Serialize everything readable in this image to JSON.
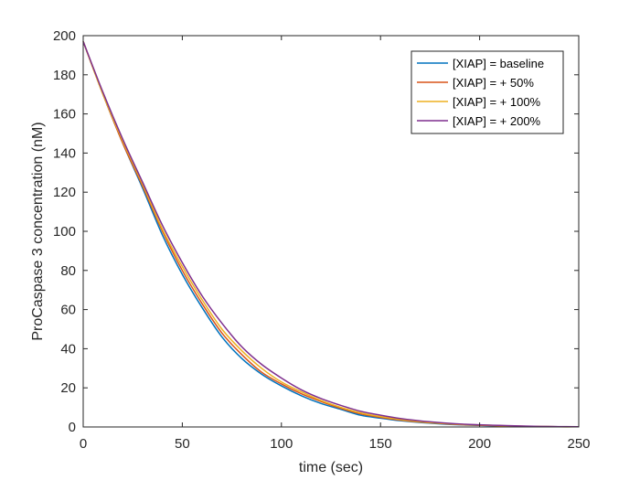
{
  "chart_data": {
    "type": "line",
    "xlabel": "time (sec)",
    "ylabel": "ProCaspase 3 concentration (nM)",
    "xlim": [
      0,
      250
    ],
    "ylim": [
      0,
      200
    ],
    "xticks": [
      0,
      50,
      100,
      150,
      200,
      250
    ],
    "yticks": [
      0,
      20,
      40,
      60,
      80,
      100,
      120,
      140,
      160,
      180,
      200
    ],
    "grid": false,
    "legend_position": "top-right",
    "series": [
      {
        "name": "[XIAP] = baseline",
        "color": "#0072BD",
        "x": [
          0,
          10,
          20,
          30,
          40,
          50,
          60,
          70,
          80,
          90,
          100,
          110,
          120,
          130,
          140,
          150,
          160,
          170,
          180,
          190,
          200,
          210,
          220,
          230,
          240,
          250
        ],
        "y": [
          197,
          170,
          145,
          122,
          98,
          78,
          61,
          46,
          35,
          27,
          21,
          16,
          12,
          9,
          6,
          4.5,
          3.2,
          2.3,
          1.6,
          1.1,
          0.8,
          0.5,
          0.3,
          0.2,
          0.1,
          0.1
        ]
      },
      {
        "name": "[XIAP] = + 50%",
        "color": "#D95319",
        "x": [
          0,
          10,
          20,
          30,
          40,
          50,
          60,
          70,
          80,
          90,
          100,
          110,
          120,
          130,
          140,
          150,
          160,
          170,
          180,
          190,
          200,
          210,
          220,
          230,
          240,
          250
        ],
        "y": [
          197,
          170,
          145,
          123,
          100,
          80,
          63,
          48,
          37,
          28,
          22,
          17,
          13,
          9.5,
          6.7,
          4.9,
          3.5,
          2.5,
          1.8,
          1.2,
          0.9,
          0.6,
          0.4,
          0.2,
          0.1,
          0.1
        ]
      },
      {
        "name": "[XIAP] = + 100%",
        "color": "#EDB120",
        "x": [
          0,
          10,
          20,
          30,
          40,
          50,
          60,
          70,
          80,
          90,
          100,
          110,
          120,
          130,
          140,
          150,
          160,
          170,
          180,
          190,
          200,
          210,
          220,
          230,
          240,
          250
        ],
        "y": [
          197,
          170,
          146,
          124,
          101,
          82,
          65,
          50,
          39,
          30,
          23,
          18,
          13.5,
          10,
          7.2,
          5.3,
          3.8,
          2.7,
          1.9,
          1.3,
          1.0,
          0.7,
          0.4,
          0.3,
          0.1,
          0.1
        ]
      },
      {
        "name": "[XIAP] = + 200%",
        "color": "#7E2F8E",
        "x": [
          0,
          10,
          20,
          30,
          40,
          50,
          60,
          70,
          80,
          90,
          100,
          110,
          120,
          130,
          140,
          150,
          160,
          170,
          180,
          190,
          200,
          210,
          220,
          230,
          240,
          250
        ],
        "y": [
          197,
          171,
          147,
          125,
          103,
          84,
          67,
          53,
          41,
          32,
          25,
          19,
          14.5,
          11,
          8,
          6,
          4.3,
          3.1,
          2.2,
          1.5,
          1.1,
          0.8,
          0.5,
          0.3,
          0.2,
          0.1
        ]
      }
    ]
  }
}
